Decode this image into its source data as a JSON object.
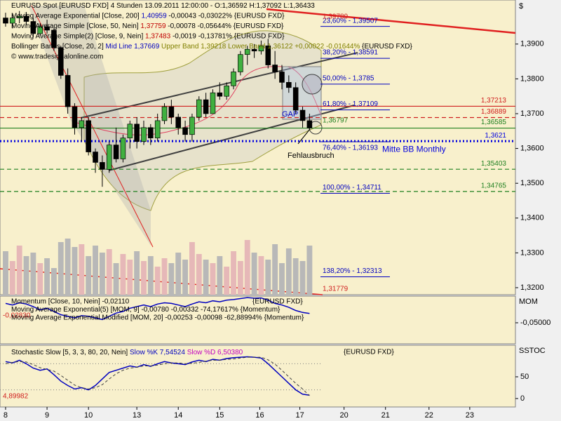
{
  "header": {
    "lines": [
      [
        {
          "text": "EURUSD Spot [EURUSD FXD]  4 Stunden 13.09.2011 12:00:00 - O:1,36592 H:1,37092 L:1,36433",
          "color": "#000000"
        }
      ],
      [
        {
          "text": "Moving Average Exponential [Close, 200] ",
          "color": "#000000"
        },
        {
          "text": "1,40959",
          "color": "#0000c0"
        },
        {
          "text": " -0,00043 -0,03022% {EURUSD FXD}",
          "color": "#000000"
        }
      ],
      [
        {
          "text": "Moving Average Simple [Close, 50, Nein] ",
          "color": "#000000"
        },
        {
          "text": "1,37759",
          "color": "#c00000"
        },
        {
          "text": " -0,00078 -0,05644% {EURUSD FXD}",
          "color": "#000000"
        }
      ],
      [
        {
          "text": "Moving Average Simple(2) [Close, 9, Nein] ",
          "color": "#000000"
        },
        {
          "text": "1,37483",
          "color": "#c00000"
        },
        {
          "text": " -0,0019 -0,13781% {EURUSD FXD}",
          "color": "#000000"
        }
      ],
      [
        {
          "text": "Bollinger Bands [Close, 20, 2] ",
          "color": "#000000"
        },
        {
          "text": "Mid Line 1,37669",
          "color": "#0000c0"
        },
        {
          "text": " Upper Band 1,39218",
          "color": "#808000"
        },
        {
          "text": " Lower Band 1,36122 +0,00022 -0,01644%",
          "color": "#808000"
        },
        {
          "text": " {EURUSD FXD}",
          "color": "#000000"
        }
      ],
      [
        {
          "text": "© www.tradesignalonline.com",
          "color": "#000000"
        }
      ]
    ],
    "currency": "$"
  },
  "chart_data": [
    {
      "type": "candlestick",
      "xlim": [
        -0.81,
        73.81
      ],
      "xticks": [
        {
          "value": 0,
          "label": "8"
        },
        {
          "value": 6,
          "label": "9"
        },
        {
          "value": 12,
          "label": "10"
        },
        {
          "value": 19,
          "label": "13"
        },
        {
          "value": 25,
          "label": "14"
        },
        {
          "value": 31,
          "label": "15"
        },
        {
          "value": 36.8,
          "label": "16"
        },
        {
          "value": 42.6,
          "label": "17"
        },
        {
          "value": 49,
          "label": "20"
        },
        {
          "value": 55,
          "label": "21"
        },
        {
          "value": 61.3,
          "label": "22"
        },
        {
          "value": 67.2,
          "label": "23"
        }
      ],
      "ylim": [
        1.31798,
        1.40266
      ],
      "yticks": [
        {
          "value": 1.32,
          "label": "1,3200"
        },
        {
          "value": 1.33,
          "label": "1,3300"
        },
        {
          "value": 1.34,
          "label": "1,3400"
        },
        {
          "value": 1.35,
          "label": "1,3500"
        },
        {
          "value": 1.36,
          "label": "1,3600"
        },
        {
          "value": 1.37,
          "label": "1,3700"
        },
        {
          "value": 1.38,
          "label": "1,3800"
        },
        {
          "value": 1.39,
          "label": "1,3900"
        }
      ],
      "up_color": "#40b040",
      "down_color": "#000000",
      "open": [
        1.3975,
        1.396,
        1.3975,
        1.398,
        1.3965,
        1.393,
        1.395,
        1.394,
        1.389,
        1.381,
        1.372,
        1.366,
        1.368,
        1.359,
        1.356,
        1.354,
        1.361,
        1.357,
        1.363,
        1.367,
        1.362,
        1.366,
        1.363,
        1.368,
        1.372,
        1.369,
        1.366,
        1.364,
        1.369,
        1.374,
        1.37,
        1.376,
        1.375,
        1.378,
        1.382,
        1.387,
        1.3885,
        1.388,
        1.3895,
        1.384,
        1.382,
        1.379,
        1.3775,
        1.371,
        1.368
      ],
      "high": [
        1.399,
        1.3985,
        1.3995,
        1.3992,
        1.3975,
        1.396,
        1.397,
        1.3945,
        1.3895,
        1.383,
        1.373,
        1.369,
        1.369,
        1.36,
        1.358,
        1.362,
        1.366,
        1.364,
        1.368,
        1.369,
        1.368,
        1.367,
        1.37,
        1.373,
        1.374,
        1.37,
        1.368,
        1.37,
        1.375,
        1.376,
        1.377,
        1.379,
        1.379,
        1.383,
        1.388,
        1.3895,
        1.39,
        1.391,
        1.3915,
        1.388,
        1.384,
        1.381,
        1.379,
        1.372,
        1.37
      ],
      "low": [
        1.395,
        1.3945,
        1.396,
        1.3955,
        1.392,
        1.3925,
        1.393,
        1.388,
        1.38,
        1.37,
        1.364,
        1.362,
        1.358,
        1.353,
        1.349,
        1.353,
        1.356,
        1.356,
        1.36,
        1.36,
        1.361,
        1.361,
        1.362,
        1.367,
        1.367,
        1.364,
        1.362,
        1.362,
        1.368,
        1.369,
        1.37,
        1.374,
        1.374,
        1.377,
        1.381,
        1.384,
        1.386,
        1.387,
        1.383,
        1.38,
        1.377,
        1.376,
        1.37,
        1.366,
        1.3655
      ],
      "close": [
        1.396,
        1.3975,
        1.398,
        1.3965,
        1.393,
        1.395,
        1.394,
        1.389,
        1.381,
        1.372,
        1.366,
        1.368,
        1.359,
        1.356,
        1.354,
        1.361,
        1.357,
        1.363,
        1.367,
        1.362,
        1.366,
        1.363,
        1.368,
        1.372,
        1.369,
        1.366,
        1.364,
        1.369,
        1.374,
        1.37,
        1.376,
        1.375,
        1.378,
        1.382,
        1.387,
        1.3885,
        1.388,
        1.3895,
        1.384,
        1.382,
        1.379,
        1.3775,
        1.371,
        1.368,
        1.3659
      ],
      "volume": [
        62,
        48,
        70,
        55,
        60,
        45,
        52,
        38,
        75,
        80,
        68,
        72,
        55,
        70,
        60,
        65,
        45,
        58,
        50,
        62,
        48,
        55,
        40,
        52,
        45,
        60,
        50,
        75,
        58,
        50,
        45,
        55,
        40,
        62,
        48,
        78,
        60,
        55,
        50,
        72,
        45,
        66,
        52,
        48,
        70
      ],
      "volume_ylim": [
        0,
        100
      ],
      "volume_colors": [
        "#e6b8b8",
        "#b8b8b8"
      ],
      "levels": [
        {
          "value": 1.37213,
          "label": "1,37213",
          "color": "#d02020",
          "style": "solid"
        },
        {
          "value": 1.36889,
          "label": "1,36889",
          "color": "#d02020",
          "style": "dashed"
        },
        {
          "value": 1.36585,
          "label": "1,36585",
          "color": "#208020",
          "style": "solid"
        },
        {
          "value": 1.3621,
          "label": "1,3621",
          "color": "#0000e0",
          "style": "dotted",
          "note": "Mitte BB Monthly"
        },
        {
          "value": 1.35403,
          "label": "1,35403",
          "color": "#208020",
          "style": "dashed"
        },
        {
          "value": 1.34765,
          "label": "1,34765",
          "color": "#208020",
          "style": "dashed"
        }
      ],
      "fibonacci": [
        {
          "value": 1.39507,
          "label": "23,60% - 1,39507"
        },
        {
          "value": 1.38591,
          "label": "38,20% - 1,38591"
        },
        {
          "value": 1.3785,
          "label": "50,00% - 1,3785"
        },
        {
          "value": 1.37109,
          "label": "61,80% - 1,37109"
        },
        {
          "value": 1.36193,
          "label": "76,40% - 1,36193"
        },
        {
          "value": 1.34711,
          "label": "100,00% - 1,34711"
        },
        {
          "value": 1.32313,
          "label": "138,20% - 1,32313"
        }
      ],
      "fib_color": "#0000c0",
      "price_labels": [
        {
          "value": 1.39789,
          "label": "1,39789",
          "color": "#d02020"
        },
        {
          "value": 1.36797,
          "label": "1,36797",
          "color": "#208020"
        },
        {
          "value": 1.31779,
          "label": "1,31779",
          "color": "#d02020"
        }
      ],
      "annotations": [
        "GAP",
        "Fehlausbruch"
      ]
    },
    {
      "type": "line",
      "title": [
        "Momentum [Close, 10, Nein] -0,02110",
        "Moving Average Exponential(5) [MOM, 9] -0,00780 -0,00332 -74,17617% {Momentum}",
        "Moving Average Exponential Modified [MOM, 20] -0,00253 -0,00098 -62,88994% {Momentum}"
      ],
      "source": "{EURUSD FXD}",
      "axis_name": "MOM",
      "ylim": [
        -0.1152,
        0.0326
      ],
      "yticks": [
        {
          "value": -0.05,
          "label": "-0,05000"
        }
      ],
      "marker": {
        "value": -0.0283,
        "label": "-0,02830",
        "color": "#d02020"
      },
      "series": [
        {
          "name": "Momentum",
          "color": "#0000c0",
          "values": [
            0.01,
            0.005,
            0.012,
            0.008,
            0.0,
            -0.01,
            -0.005,
            -0.015,
            -0.025,
            -0.03,
            -0.035,
            -0.028,
            -0.03,
            -0.035,
            -0.04,
            -0.03,
            -0.02,
            -0.015,
            -0.005,
            0.0,
            0.005,
            0.0,
            0.008,
            0.012,
            0.01,
            0.005,
            0.0,
            0.008,
            0.015,
            0.012,
            0.018,
            0.015,
            0.02,
            0.022,
            0.025,
            0.028,
            0.026,
            0.027,
            0.02,
            0.01,
            0.005,
            -0.002,
            -0.012,
            -0.018,
            -0.0211
          ]
        }
      ]
    },
    {
      "type": "line",
      "title": [
        "Stochastic Slow [5, 3, 3, 80, 20, Nein] ",
        "Slow %K 7,54524",
        " Slow %D 6,50380"
      ],
      "title_colors": [
        "#000000",
        "#0000c0",
        "#c000c0"
      ],
      "source": "{EURUSD FXD}",
      "axis_name": "SSTOC",
      "ylim": [
        -19.35,
        122.58
      ],
      "yticks": [
        0,
        50
      ],
      "guides": [
        80,
        20
      ],
      "marker": {
        "value": 4.89982,
        "label": "4,89982",
        "color": "#d02020"
      },
      "series": [
        {
          "name": "Slow %K",
          "color": "#0000c0",
          "values": [
            85,
            82,
            88,
            80,
            70,
            65,
            68,
            55,
            40,
            30,
            22,
            25,
            20,
            30,
            45,
            60,
            65,
            70,
            75,
            72,
            78,
            74,
            80,
            85,
            82,
            80,
            78,
            84,
            88,
            85,
            90,
            88,
            92,
            94,
            95,
            96,
            95,
            93,
            80,
            65,
            50,
            35,
            20,
            10,
            7.54524
          ]
        },
        {
          "name": "Slow %D",
          "color": "#404040",
          "values": [
            80,
            83,
            85,
            84,
            78,
            71,
            67,
            63,
            53,
            42,
            31,
            25,
            22,
            25,
            32,
            45,
            57,
            65,
            70,
            72,
            75,
            75,
            77,
            80,
            82,
            82,
            80,
            81,
            83,
            86,
            88,
            88,
            90,
            91,
            93,
            95,
            95,
            95,
            89,
            79,
            65,
            50,
            35,
            22,
            6.5038
          ]
        }
      ]
    }
  ]
}
